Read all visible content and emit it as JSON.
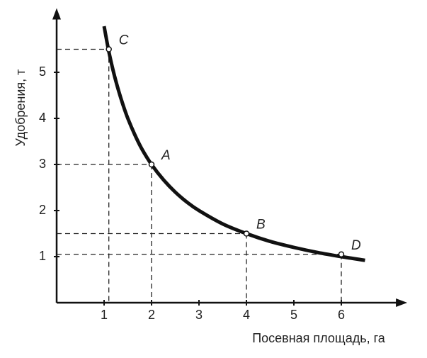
{
  "chart_data": {
    "type": "line",
    "x_label": "Посевная площадь, га",
    "y_label": "Удобрения, т",
    "xlim": [
      0,
      7.3
    ],
    "ylim": [
      0,
      6.3
    ],
    "xticks": [
      1,
      2,
      3,
      4,
      5,
      6
    ],
    "yticks": [
      1,
      2,
      3,
      4,
      5
    ],
    "series": [
      {
        "color": "#111111",
        "x": [
          1.0,
          1.1,
          1.2,
          1.3,
          1.4,
          1.5,
          1.65,
          1.8,
          2,
          2.25,
          2.5,
          2.75,
          3,
          3.5,
          4,
          4.5,
          5,
          5.5,
          6,
          6.5
        ],
        "values": [
          6,
          5.45,
          5,
          4.62,
          4.29,
          4,
          3.64,
          3.33,
          3,
          2.67,
          2.4,
          2.18,
          2,
          1.71,
          1.5,
          1.33,
          1.2,
          1.09,
          1,
          0.92
        ]
      }
    ],
    "points": [
      {
        "label": "C",
        "x": 1.1,
        "y": 5.5
      },
      {
        "label": "A",
        "x": 2,
        "y": 3
      },
      {
        "label": "B",
        "x": 4,
        "y": 1.5
      },
      {
        "label": "D",
        "x": 6,
        "y": 1.05
      }
    ]
  }
}
